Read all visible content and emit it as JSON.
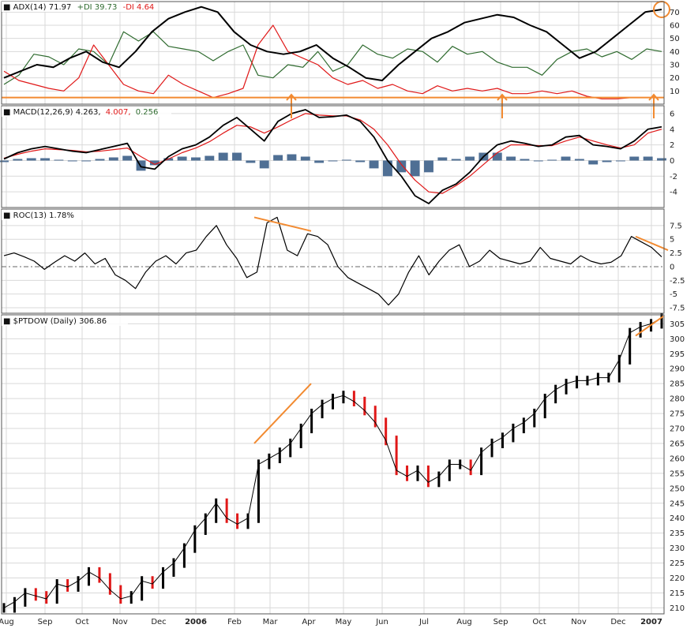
{
  "colors": {
    "background": "#ffffff",
    "grid": "#d9d9d9",
    "frame": "#555555",
    "price_line": "#000000",
    "red_line": "#e01818",
    "green_line": "#2f6b2f",
    "histogram": "#4f6f94",
    "annotation": "#f28a30"
  },
  "chart_data": [
    {
      "type": "line",
      "title": "ADX(14) 71.97",
      "series": [
        {
          "name": "+DI 39.73",
          "values": [
            15,
            22,
            38,
            36,
            30,
            42,
            40,
            30,
            55,
            48,
            55,
            44,
            42,
            40,
            33,
            40,
            45,
            22,
            20,
            30,
            28,
            40,
            25,
            30,
            45,
            38,
            35,
            42,
            40,
            32,
            44,
            38,
            40,
            32,
            28,
            28,
            22,
            34,
            40,
            42,
            36,
            40,
            34,
            42,
            40
          ]
        },
        {
          "name": "-DI 4.64",
          "values": [
            25,
            18,
            15,
            12,
            10,
            20,
            45,
            30,
            15,
            10,
            8,
            22,
            15,
            10,
            5,
            8,
            12,
            45,
            60,
            40,
            35,
            30,
            20,
            15,
            18,
            12,
            15,
            10,
            8,
            14,
            10,
            12,
            10,
            12,
            8,
            8,
            10,
            8,
            10,
            6,
            4,
            4,
            5,
            5,
            5
          ]
        },
        {
          "name": "ADX",
          "values": [
            20,
            25,
            30,
            28,
            35,
            40,
            32,
            28,
            40,
            55,
            65,
            70,
            74,
            70,
            55,
            45,
            40,
            38,
            40,
            45,
            35,
            28,
            20,
            18,
            30,
            40,
            50,
            55,
            62,
            65,
            68,
            66,
            60,
            55,
            45,
            35,
            40,
            50,
            60,
            70,
            72
          ]
        }
      ],
      "ylim": [
        0,
        78
      ],
      "y_ticks": [
        10,
        20,
        30,
        40,
        50,
        60,
        70
      ],
      "annotations": [
        "horizontal line at ADX 5",
        "circle at latest ADX value"
      ]
    },
    {
      "type": "line",
      "title": "MACD(12,26,9) 4.263, 4.007, 0.256",
      "series": [
        {
          "name": "MACD",
          "values": [
            0.2,
            1.0,
            1.5,
            1.8,
            1.5,
            1.2,
            1.0,
            1.4,
            1.8,
            2.2,
            -0.8,
            -1.1,
            0.5,
            1.5,
            2.0,
            3.0,
            4.5,
            5.5,
            4.0,
            2.5,
            5.0,
            6.0,
            6.5,
            5.5,
            5.6,
            5.8,
            5.0,
            3.0,
            0,
            -2.0,
            -4.5,
            -5.5,
            -3.8,
            -3.0,
            -1.5,
            0.5,
            2.0,
            2.5,
            2.2,
            1.8,
            2.0,
            3.0,
            3.2,
            2.0,
            1.8,
            1.5,
            2.5,
            4.0,
            4.3
          ]
        },
        {
          "name": "Signal",
          "values": [
            0.3,
            0.8,
            1.2,
            1.5,
            1.4,
            1.3,
            1.1,
            1.2,
            1.4,
            1.6,
            0.5,
            -0.5,
            0.2,
            1.0,
            1.6,
            2.4,
            3.5,
            4.5,
            4.3,
            3.5,
            4.3,
            5.2,
            6.0,
            5.8,
            5.7,
            5.7,
            5.2,
            4.0,
            2.0,
            -0.5,
            -2.5,
            -4.0,
            -4.2,
            -3.2,
            -2.0,
            -0.5,
            1.0,
            2.0,
            2.0,
            1.9,
            1.9,
            2.5,
            3.0,
            2.5,
            2.0,
            1.6,
            2.0,
            3.5,
            4.0
          ]
        },
        {
          "name": "Histogram",
          "values": [
            -0.2,
            0.2,
            0.3,
            0.3,
            0.1,
            -0.1,
            -0.1,
            0.2,
            0.4,
            0.6,
            -1.3,
            -0.6,
            0.3,
            0.5,
            0.4,
            0.6,
            1.0,
            1.0,
            -0.3,
            -1.0,
            0.7,
            0.8,
            0.5,
            -0.3,
            -0.1,
            0.1,
            -0.2,
            -1.0,
            -2.0,
            -1.5,
            -2.0,
            -1.5,
            0.4,
            0.2,
            0.5,
            1.0,
            1.0,
            0.5,
            0.2,
            -0.1,
            0.1,
            0.5,
            0.2,
            -0.5,
            -0.2,
            -0.1,
            0.5,
            0.5,
            0.3
          ]
        }
      ],
      "ylim": [
        -6,
        7
      ],
      "y_ticks": [
        -4,
        -2,
        0,
        2,
        4,
        6
      ]
    },
    {
      "type": "line",
      "title": "ROC(13) 1.78%",
      "series": [
        {
          "name": "ROC(13)",
          "values": [
            2.0,
            2.5,
            1.8,
            1.0,
            -0.5,
            0.8,
            2.0,
            1.0,
            2.5,
            0.5,
            1.5,
            -1.5,
            -2.5,
            -4.0,
            -1.0,
            1.0,
            2.0,
            0.5,
            2.5,
            3.0,
            5.5,
            7.5,
            4.0,
            1.5,
            -2.0,
            -1.0,
            8.0,
            9.0,
            3.0,
            2.0,
            6.0,
            5.5,
            4.0,
            0,
            -2.0,
            -3.0,
            -4.0,
            -5.0,
            -7.0,
            -5.0,
            -1.0,
            2.0,
            -1.5,
            1.0,
            3.0,
            4.0,
            0,
            1.0,
            3.0,
            1.5,
            1.0,
            0.5,
            1.0,
            3.5,
            1.5,
            1.0,
            0.5,
            2.0,
            1.0,
            0.5,
            0.8,
            2.0,
            5.5,
            4.5,
            3.5,
            1.78
          ]
        }
      ],
      "ylim": [
        -8.5,
        10.5
      ],
      "y_ticks": [
        -7.5,
        -5.0,
        -2.5,
        0.0,
        2.5,
        5.0,
        7.5
      ],
      "annotations": [
        "trend line 9 to 6.5 (Mar to Apr)",
        "trend line 5.5 to 3 (Dec to Jan 2007)"
      ]
    },
    {
      "type": "line",
      "title": "$PTDOW (Daily) 306.86",
      "series": [
        {
          "name": "$PTDOW",
          "values": [
            210,
            212,
            215,
            214,
            213,
            218,
            217,
            219,
            222,
            220,
            216,
            213,
            214,
            219,
            218,
            222,
            225,
            230,
            236,
            240,
            245,
            240,
            238,
            240,
            258,
            260,
            262,
            265,
            270,
            275,
            278,
            280,
            281,
            279,
            276,
            272,
            266,
            256,
            254,
            256,
            252,
            254,
            258,
            258,
            256,
            262,
            265,
            267,
            270,
            272,
            275,
            280,
            283,
            285,
            286,
            286,
            287,
            287,
            293,
            302,
            304,
            305,
            307
          ]
        }
      ],
      "ylim": [
        208,
        308
      ],
      "y_ticks": [
        210,
        215,
        220,
        225,
        230,
        235,
        240,
        245,
        250,
        255,
        260,
        265,
        270,
        275,
        280,
        285,
        290,
        295,
        300,
        305
      ],
      "annotations": [
        "trend line 265 to 285 (Feb to Apr)",
        "trend line 300 to 307 (Dec to Jan 2007)"
      ]
    }
  ],
  "x_axis": {
    "labels": [
      "Aug",
      "Sep",
      "Oct",
      "Nov",
      "Dec",
      "2006",
      "Feb",
      "Mar",
      "Apr",
      "May",
      "Jun",
      "Jul",
      "Aug",
      "Sep",
      "Oct",
      "Nov",
      "Dec",
      "2007"
    ]
  },
  "panel_titles": {
    "adx_name": "ADX(14) 71.97",
    "adx_plus": "+DI 39.73",
    "adx_minus": "-DI 4.64",
    "macd_name": "MACD(12,26,9) 4.263,",
    "macd_signal": "4.007,",
    "macd_hist": "0.256",
    "roc": "ROC(13) 1.78%",
    "price": "$PTDOW (Daily) 306.86"
  }
}
